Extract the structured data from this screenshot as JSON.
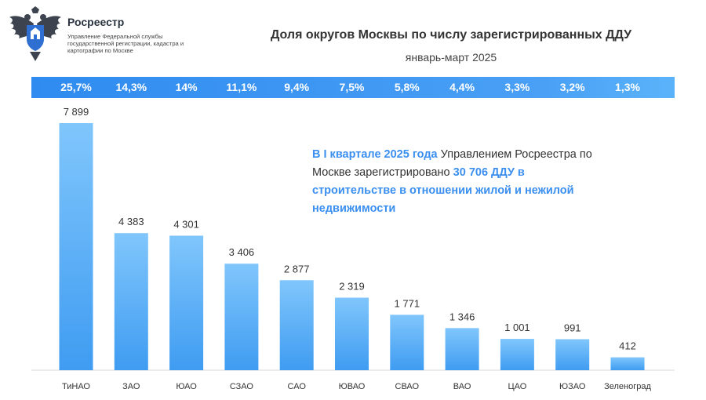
{
  "header": {
    "brand": "Росреестр",
    "brand_sub": "Управление Федеральной службы государственной регистрации, кадастра и картографии по Москве",
    "logo_icon": "double-headed-eagle-emblem"
  },
  "note": {
    "part1": "В I квартале 2025 года",
    "part2": " Управлением Росреестра по Москве зарегистрировано ",
    "part3": "30 706 ДДУ в строительстве в отношении жилой и нежилой недвижимости"
  },
  "colors": {
    "bar_top": "#80c6fc",
    "bar_bottom": "#3f9cf1",
    "band": "#3f97f2",
    "accent_text": "#3b8ff0"
  },
  "chart_data": {
    "type": "bar",
    "title": "Доля округов Москвы по числу зарегистрированных ДДУ",
    "subtitle": "январь-март 2025",
    "categories": [
      "ТиНАО",
      "ЗАО",
      "ЮАО",
      "СЗАО",
      "САО",
      "ЮВАО",
      "СВАО",
      "ВАО",
      "ЦАО",
      "ЮЗАО",
      "Зеленоград"
    ],
    "values": [
      7899,
      4383,
      4301,
      3406,
      2877,
      2319,
      1771,
      1346,
      1001,
      991,
      412
    ],
    "value_labels": [
      "7 899",
      "4 383",
      "4 301",
      "3 406",
      "2 877",
      "2 319",
      "1 771",
      "1 346",
      "1 001",
      "991",
      "412"
    ],
    "shares": [
      "25,7%",
      "14,3%",
      "14%",
      "11,1%",
      "9,4%",
      "7,5%",
      "5,8%",
      "4,4%",
      "3,3%",
      "3,2%",
      "1,3%"
    ],
    "grid": false,
    "legend": "none"
  }
}
